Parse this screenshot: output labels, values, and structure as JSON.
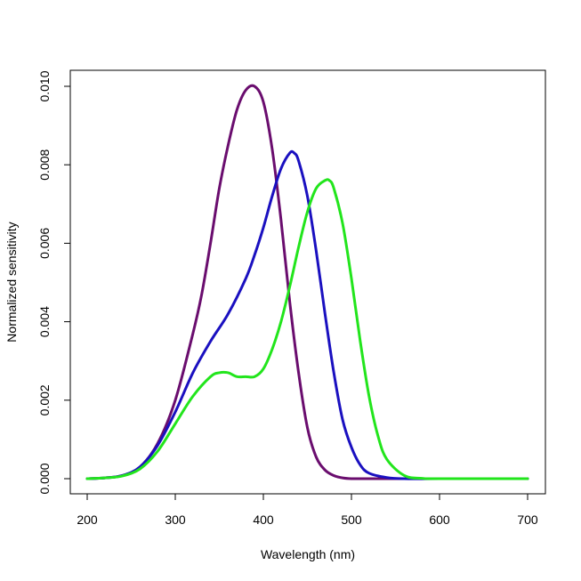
{
  "chart_data": {
    "type": "line",
    "title": "",
    "xlabel": "Wavelength (nm)",
    "ylabel": "Normalized sensitivity",
    "xlim": [
      200,
      700
    ],
    "ylim": [
      0,
      0.01
    ],
    "x_ticks": [
      200,
      300,
      400,
      500,
      600,
      700
    ],
    "y_ticks": [
      0.0,
      0.002,
      0.004,
      0.006,
      0.008,
      0.01
    ],
    "x_tick_labels": [
      "200",
      "300",
      "400",
      "500",
      "600",
      "700"
    ],
    "y_tick_labels": [
      "0.000",
      "0.002",
      "0.004",
      "0.006",
      "0.008",
      "0.010"
    ],
    "grid": false,
    "legend": "none",
    "series": [
      {
        "color": "#6a0d6e",
        "x": [
          200,
          220,
          240,
          260,
          280,
          300,
          320,
          330,
          340,
          350,
          360,
          370,
          380,
          390,
          400,
          410,
          420,
          430,
          440,
          450,
          460,
          470,
          480,
          490,
          500,
          520,
          550,
          600,
          700
        ],
        "y": [
          0.0,
          2e-05,
          8e-05,
          0.0003,
          0.0009,
          0.002,
          0.0037,
          0.0047,
          0.006,
          0.0074,
          0.0085,
          0.0094,
          0.0099,
          0.01,
          0.0096,
          0.0084,
          0.0066,
          0.0045,
          0.0027,
          0.0013,
          0.00055,
          0.00022,
          8e-05,
          2e-05,
          0.0,
          0.0,
          0.0,
          0.0,
          0.0
        ]
      },
      {
        "color": "#1a10c0",
        "x": [
          200,
          220,
          240,
          260,
          280,
          300,
          320,
          340,
          360,
          380,
          390,
          400,
          410,
          420,
          430,
          435,
          440,
          450,
          460,
          470,
          480,
          490,
          500,
          510,
          520,
          540,
          560,
          600,
          700
        ],
        "y": [
          0.0,
          2e-05,
          8e-05,
          0.0003,
          0.00085,
          0.0017,
          0.0027,
          0.0035,
          0.0042,
          0.0051,
          0.0057,
          0.0064,
          0.0072,
          0.0079,
          0.0083,
          0.0083,
          0.0081,
          0.0072,
          0.0058,
          0.0042,
          0.0027,
          0.0015,
          0.0008,
          0.00035,
          0.00014,
          3e-05,
          0.0,
          0.0,
          0.0
        ]
      },
      {
        "color": "#22e51c",
        "x": [
          200,
          220,
          240,
          260,
          280,
          300,
          320,
          340,
          350,
          360,
          370,
          380,
          390,
          400,
          410,
          420,
          430,
          440,
          450,
          460,
          470,
          475,
          480,
          490,
          500,
          510,
          520,
          530,
          540,
          560,
          580,
          600,
          700
        ],
        "y": [
          0.0,
          2e-05,
          7e-05,
          0.00025,
          0.0007,
          0.0014,
          0.0021,
          0.0026,
          0.0027,
          0.0027,
          0.0026,
          0.0026,
          0.0026,
          0.0028,
          0.0033,
          0.004,
          0.0049,
          0.0059,
          0.0068,
          0.0074,
          0.0076,
          0.0076,
          0.0074,
          0.0065,
          0.0051,
          0.0035,
          0.0021,
          0.0011,
          0.0005,
          8e-05,
          1e-05,
          0.0,
          0.0
        ]
      }
    ]
  }
}
